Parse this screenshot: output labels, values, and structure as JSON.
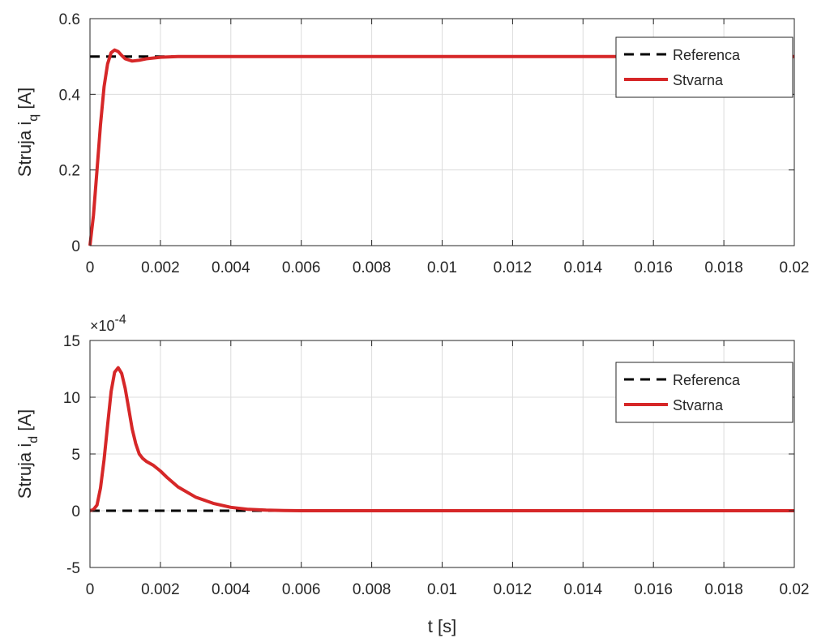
{
  "chart_data": [
    {
      "type": "line",
      "ylabel": "Struja i",
      "ylabel_sub": "q",
      "ylabel_unit": " [A]",
      "xlabel": "",
      "xlim": [
        0,
        0.02
      ],
      "ylim": [
        0,
        0.6
      ],
      "x_ticks": [
        "0",
        "0.002",
        "0.004",
        "0.006",
        "0.008",
        "0.01",
        "0.012",
        "0.014",
        "0.016",
        "0.018",
        "0.02"
      ],
      "y_ticks": [
        "0",
        "0.2",
        "0.4",
        "0.6"
      ],
      "y_tick_values": [
        0,
        0.2,
        0.4,
        0.6
      ],
      "grid": true,
      "legend_position": "top-right",
      "series": [
        {
          "name": "Referenca",
          "color": "#000000",
          "style": "dashed",
          "x": [
            0,
            0.02
          ],
          "y": [
            0.5,
            0.5
          ]
        },
        {
          "name": "Stvarna",
          "color": "#d62728",
          "style": "solid",
          "x": [
            0,
            0.0001,
            0.0002,
            0.0003,
            0.0004,
            0.0005,
            0.0006,
            0.0007,
            0.0008,
            0.0009,
            0.001,
            0.0012,
            0.0014,
            0.0016,
            0.002,
            0.0025,
            0.003,
            0.004,
            0.006,
            0.01,
            0.02
          ],
          "y": [
            0,
            0.08,
            0.2,
            0.32,
            0.42,
            0.48,
            0.51,
            0.517,
            0.513,
            0.503,
            0.494,
            0.488,
            0.49,
            0.494,
            0.498,
            0.5,
            0.5,
            0.5,
            0.5,
            0.5,
            0.5
          ]
        }
      ]
    },
    {
      "type": "line",
      "ylabel": "Struja i",
      "ylabel_sub": "d",
      "ylabel_unit": " [A]",
      "xlabel": "t [s]",
      "xlim": [
        0,
        0.02
      ],
      "ylim": [
        -5,
        15
      ],
      "y_scale_base": "×10",
      "y_scale_exp": "-4",
      "x_ticks": [
        "0",
        "0.002",
        "0.004",
        "0.006",
        "0.008",
        "0.01",
        "0.012",
        "0.014",
        "0.016",
        "0.018",
        "0.02"
      ],
      "y_ticks": [
        "-5",
        "0",
        "5",
        "10",
        "15"
      ],
      "y_tick_values": [
        -5,
        0,
        5,
        10,
        15
      ],
      "grid": true,
      "legend_position": "top-right",
      "series": [
        {
          "name": "Referenca",
          "color": "#000000",
          "style": "dashed",
          "x": [
            0,
            0.02
          ],
          "y": [
            0,
            0
          ]
        },
        {
          "name": "Stvarna",
          "color": "#d62728",
          "style": "solid",
          "x": [
            0,
            0.0001,
            0.0002,
            0.0003,
            0.0004,
            0.0005,
            0.0006,
            0.0007,
            0.0008,
            0.0009,
            0.001,
            0.0011,
            0.0012,
            0.0013,
            0.0014,
            0.0015,
            0.0016,
            0.0018,
            0.002,
            0.0022,
            0.0025,
            0.003,
            0.0035,
            0.004,
            0.0045,
            0.005,
            0.0055,
            0.006,
            0.01,
            0.02
          ],
          "y": [
            0,
            0.1,
            0.5,
            2,
            4.5,
            7.5,
            10.5,
            12.2,
            12.6,
            12.1,
            10.8,
            9,
            7.2,
            5.9,
            5.0,
            4.6,
            4.35,
            4.0,
            3.5,
            2.9,
            2.1,
            1.2,
            0.65,
            0.3,
            0.12,
            0.05,
            0.02,
            0,
            0,
            0
          ]
        }
      ]
    }
  ]
}
